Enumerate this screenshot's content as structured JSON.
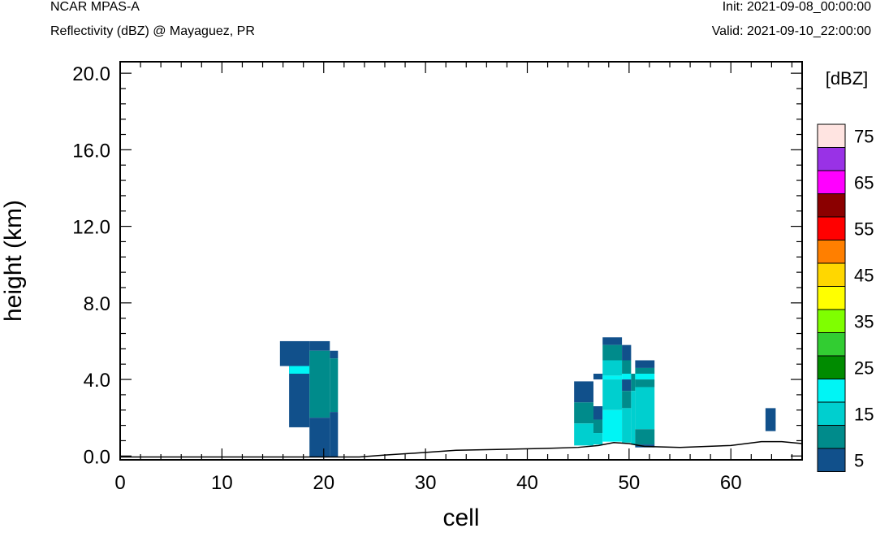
{
  "header": {
    "model": "NCAR MPAS-A",
    "field": "Reflectivity (dBZ) @ Mayaguez, PR",
    "init": "Init: 2021-09-08_00:00:00",
    "valid": "Valid: 2021-09-10_22:00:00"
  },
  "chart_data": {
    "type": "heatmap",
    "xlabel": "cell",
    "ylabel": "height (km)",
    "xlim": [
      0,
      67
    ],
    "ylim": [
      -0.2,
      20.6
    ],
    "x_ticks": [
      "0",
      "10",
      "20",
      "30",
      "40",
      "50",
      "60"
    ],
    "x_tick_values": [
      0,
      10,
      20,
      30,
      40,
      50,
      60
    ],
    "y_ticks": [
      "0.0",
      "4.0",
      "8.0",
      "12.0",
      "16.0",
      "20.0"
    ],
    "y_tick_values": [
      0,
      4,
      8,
      12,
      16,
      20
    ],
    "colorbar": {
      "unit_label": "[dBZ]",
      "bins": [
        {
          "value": 5,
          "color": "#11508b"
        },
        {
          "value": 10,
          "color": "#008b8b"
        },
        {
          "value": 15,
          "color": "#00cfcf"
        },
        {
          "value": 20,
          "color": "#00f5f5"
        },
        {
          "value": 25,
          "color": "#008b00"
        },
        {
          "value": 30,
          "color": "#32cd32"
        },
        {
          "value": 35,
          "color": "#7fff00"
        },
        {
          "value": 40,
          "color": "#ffff00"
        },
        {
          "value": 45,
          "color": "#ffd700"
        },
        {
          "value": 50,
          "color": "#ff7f00"
        },
        {
          "value": 55,
          "color": "#ff0000"
        },
        {
          "value": 60,
          "color": "#8b0000"
        },
        {
          "value": 65,
          "color": "#ff00ff"
        },
        {
          "value": 70,
          "color": "#9932e6"
        },
        {
          "value": 75,
          "color": "#ffe4e1"
        }
      ],
      "labels": [
        "5",
        "15",
        "25",
        "35",
        "45",
        "55",
        "65",
        "75"
      ]
    },
    "cells": [
      {
        "x0": 15.7,
        "x1": 18.6,
        "y0": 4.7,
        "y1": 6.0,
        "dbz": 5
      },
      {
        "x0": 16.6,
        "x1": 18.6,
        "y0": 1.5,
        "y1": 4.7,
        "dbz": 5
      },
      {
        "x0": 16.6,
        "x1": 18.6,
        "y0": 4.3,
        "y1": 4.7,
        "dbz": 20
      },
      {
        "x0": 18.6,
        "x1": 20.6,
        "y0": 5.5,
        "y1": 6.0,
        "dbz": 5
      },
      {
        "x0": 18.6,
        "x1": 20.6,
        "y0": 2.0,
        "y1": 5.5,
        "dbz": 10
      },
      {
        "x0": 18.6,
        "x1": 20.6,
        "y0": -0.05,
        "y1": 2.0,
        "dbz": 5
      },
      {
        "x0": 20.6,
        "x1": 21.4,
        "y0": 5.1,
        "y1": 5.5,
        "dbz": 5
      },
      {
        "x0": 20.6,
        "x1": 21.4,
        "y0": 2.3,
        "y1": 5.1,
        "dbz": 10
      },
      {
        "x0": 20.6,
        "x1": 21.4,
        "y0": -0.05,
        "y1": 2.3,
        "dbz": 5
      },
      {
        "x0": 44.6,
        "x1": 46.5,
        "y0": 2.8,
        "y1": 3.9,
        "dbz": 5
      },
      {
        "x0": 44.6,
        "x1": 46.5,
        "y0": 1.7,
        "y1": 2.8,
        "dbz": 10
      },
      {
        "x0": 44.6,
        "x1": 46.5,
        "y0": 0.55,
        "y1": 1.7,
        "dbz": 15
      },
      {
        "x0": 46.5,
        "x1": 47.4,
        "y0": 1.9,
        "y1": 2.6,
        "dbz": 5
      },
      {
        "x0": 46.5,
        "x1": 47.4,
        "y0": 1.2,
        "y1": 1.9,
        "dbz": 10
      },
      {
        "x0": 46.5,
        "x1": 47.4,
        "y0": 0.6,
        "y1": 1.2,
        "dbz": 15
      },
      {
        "x0": 46.5,
        "x1": 47.4,
        "y0": 4.0,
        "y1": 4.3,
        "dbz": 5
      },
      {
        "x0": 47.4,
        "x1": 49.3,
        "y0": 5.8,
        "y1": 6.2,
        "dbz": 5
      },
      {
        "x0": 47.4,
        "x1": 49.3,
        "y0": 5.0,
        "y1": 5.8,
        "dbz": 10
      },
      {
        "x0": 47.4,
        "x1": 49.3,
        "y0": 4.2,
        "y1": 5.0,
        "dbz": 15
      },
      {
        "x0": 47.4,
        "x1": 49.3,
        "y0": 4.0,
        "y1": 4.2,
        "dbz": 20
      },
      {
        "x0": 47.4,
        "x1": 49.3,
        "y0": 2.4,
        "y1": 4.0,
        "dbz": 15
      },
      {
        "x0": 47.4,
        "x1": 49.3,
        "y0": 0.75,
        "y1": 2.4,
        "dbz": 20
      },
      {
        "x0": 49.3,
        "x1": 50.2,
        "y0": 5.0,
        "y1": 5.8,
        "dbz": 5
      },
      {
        "x0": 49.3,
        "x1": 50.2,
        "y0": 4.3,
        "y1": 5.0,
        "dbz": 10
      },
      {
        "x0": 49.3,
        "x1": 50.2,
        "y0": 4.0,
        "y1": 4.3,
        "dbz": 20
      },
      {
        "x0": 49.3,
        "x1": 50.2,
        "y0": 3.4,
        "y1": 4.0,
        "dbz": 5
      },
      {
        "x0": 49.3,
        "x1": 50.2,
        "y0": 2.5,
        "y1": 3.4,
        "dbz": 10
      },
      {
        "x0": 49.3,
        "x1": 50.2,
        "y0": 0.7,
        "y1": 2.5,
        "dbz": 15
      },
      {
        "x0": 50.2,
        "x1": 50.6,
        "y0": 3.4,
        "y1": 4.3,
        "dbz": 10
      },
      {
        "x0": 50.2,
        "x1": 50.6,
        "y0": 0.6,
        "y1": 3.4,
        "dbz": 15
      },
      {
        "x0": 50.6,
        "x1": 52.5,
        "y0": 4.6,
        "y1": 5.0,
        "dbz": 5
      },
      {
        "x0": 50.6,
        "x1": 52.5,
        "y0": 4.3,
        "y1": 4.6,
        "dbz": 10
      },
      {
        "x0": 50.6,
        "x1": 52.5,
        "y0": 4.0,
        "y1": 4.3,
        "dbz": 20
      },
      {
        "x0": 50.6,
        "x1": 52.5,
        "y0": 3.6,
        "y1": 4.0,
        "dbz": 10
      },
      {
        "x0": 50.6,
        "x1": 52.5,
        "y0": 1.4,
        "y1": 3.6,
        "dbz": 15
      },
      {
        "x0": 50.6,
        "x1": 52.5,
        "y0": 0.6,
        "y1": 1.4,
        "dbz": 10
      },
      {
        "x0": 50.6,
        "x1": 52.5,
        "y0": 0.45,
        "y1": 0.6,
        "dbz": 5
      },
      {
        "x0": 63.4,
        "x1": 64.4,
        "y0": 1.3,
        "y1": 2.5,
        "dbz": 5
      }
    ],
    "terrain": [
      [
        0,
        -0.05
      ],
      [
        23.5,
        -0.05
      ],
      [
        26,
        0.05
      ],
      [
        29,
        0.15
      ],
      [
        33,
        0.3
      ],
      [
        38,
        0.35
      ],
      [
        42,
        0.4
      ],
      [
        45,
        0.45
      ],
      [
        47,
        0.55
      ],
      [
        48.5,
        0.7
      ],
      [
        50,
        0.65
      ],
      [
        51.5,
        0.5
      ],
      [
        55,
        0.45
      ],
      [
        60,
        0.55
      ],
      [
        63,
        0.75
      ],
      [
        65,
        0.75
      ],
      [
        67,
        0.65
      ]
    ]
  }
}
